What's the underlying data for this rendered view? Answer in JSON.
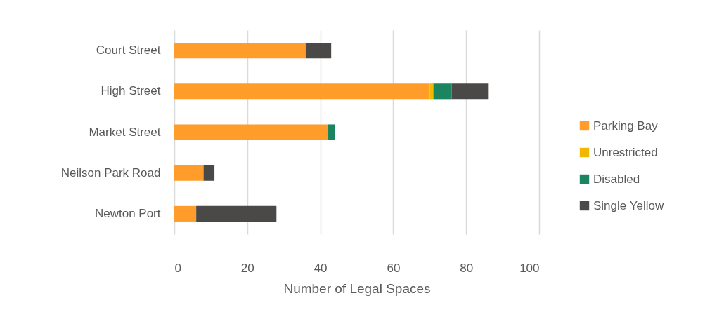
{
  "chart_data": {
    "type": "bar",
    "orientation": "horizontal",
    "stacked": true,
    "xlabel": "Number of Legal Spaces",
    "categories": [
      "Court Street",
      "High Street",
      "Market Street",
      "Neilson Park Road",
      "Newton Port"
    ],
    "series": [
      {
        "name": "Parking Bay",
        "color": "#ff9c2a",
        "values": [
          36,
          70,
          42,
          8,
          6
        ]
      },
      {
        "name": "Unrestricted",
        "color": "#f2b800",
        "values": [
          0,
          1,
          0,
          0,
          0
        ]
      },
      {
        "name": "Disabled",
        "color": "#1b8560",
        "values": [
          0,
          5,
          2,
          0,
          0
        ]
      },
      {
        "name": "Single Yellow",
        "color": "#4a4947",
        "values": [
          7,
          10,
          0,
          3,
          22
        ]
      }
    ],
    "xlim": [
      0,
      100
    ],
    "xticks": [
      0,
      20,
      40,
      60,
      80,
      100
    ],
    "grid": "x",
    "legend": "right"
  }
}
